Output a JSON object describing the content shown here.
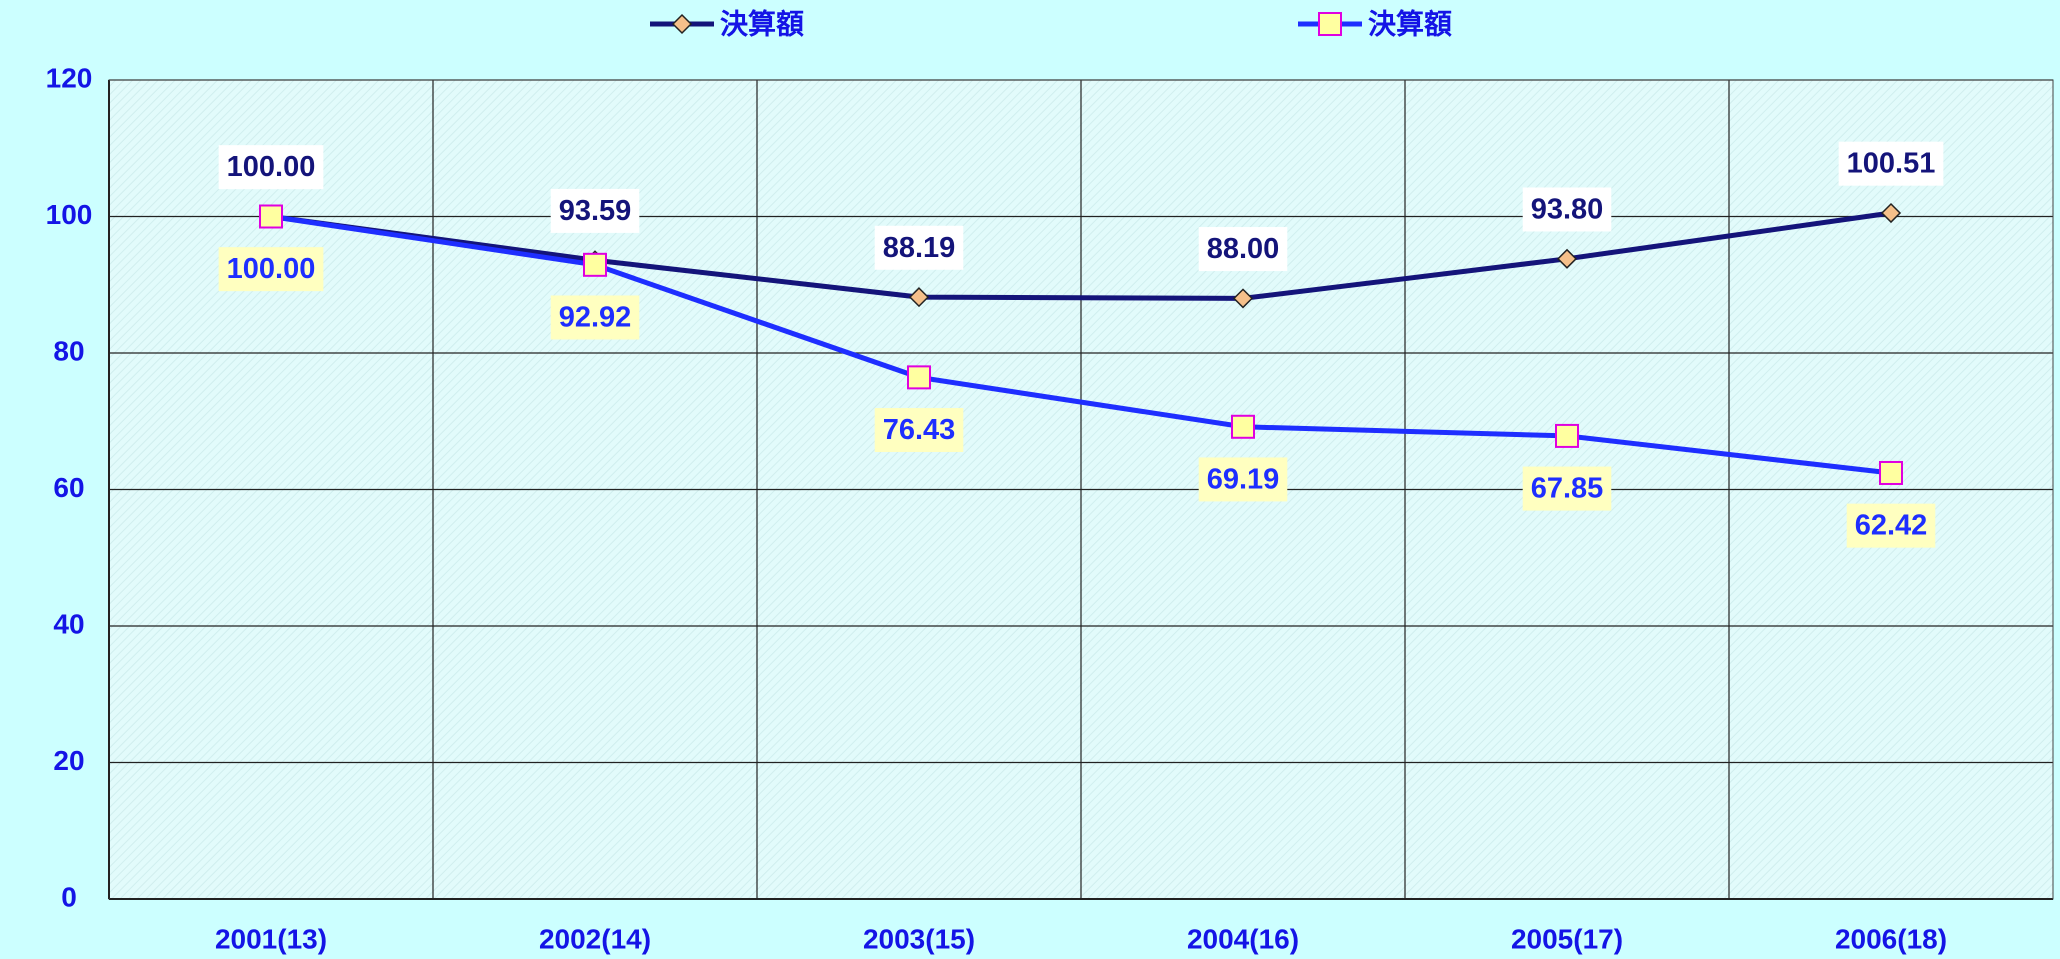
{
  "chart_data": {
    "type": "line",
    "categories": [
      "2001(13)",
      "2002(14)",
      "2003(15)",
      "2004(16)",
      "2005(17)",
      "2006(18)"
    ],
    "series": [
      {
        "name": "決算額",
        "color": "#14147a",
        "marker": "diamond",
        "marker_color": "#f5c08a",
        "values": [
          100,
          93.59,
          88.19,
          88,
          93.8,
          100.51
        ],
        "value_labels": [
          "100.00",
          "93.59",
          "88.19",
          "88.00",
          "93.80",
          "100.51"
        ]
      },
      {
        "name": "決算額",
        "color": "#1e2eff",
        "marker": "square",
        "marker_color": "#ffffa0",
        "values": [
          100,
          92.92,
          76.43,
          69.19,
          67.85,
          62.42
        ],
        "value_labels": [
          "100.00",
          "92.92",
          "76.43",
          "69.19",
          "67.85",
          "62.42"
        ]
      }
    ],
    "ylim": [
      0,
      120
    ],
    "yticks": [
      0,
      20,
      40,
      60,
      80,
      100,
      120
    ],
    "grid": true,
    "legend": "top"
  }
}
